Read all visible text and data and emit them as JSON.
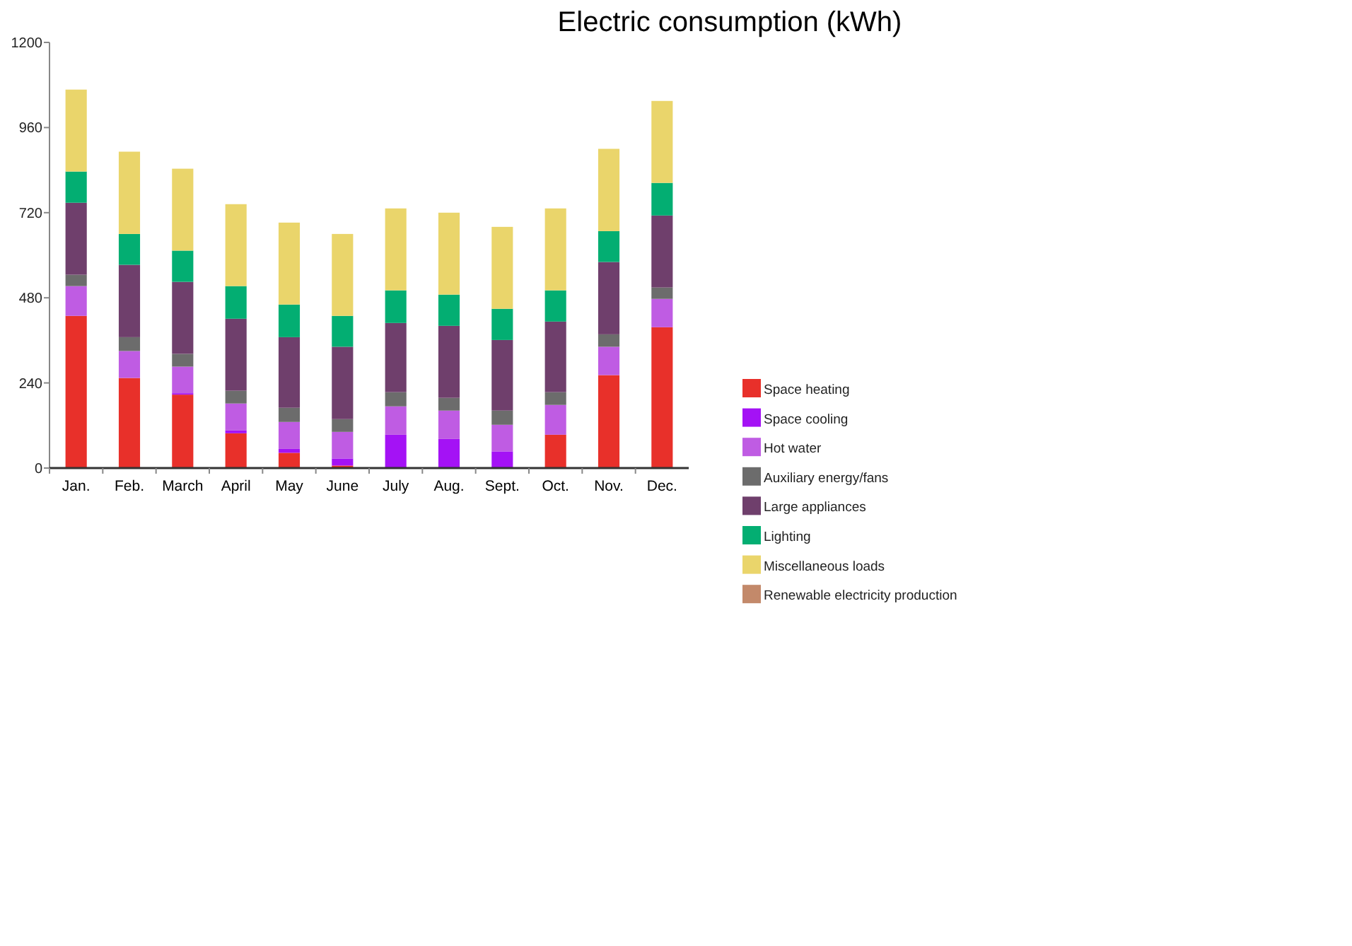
{
  "chart_data": {
    "type": "bar",
    "title": "Electric consumption (kWh)",
    "stacked": true,
    "legend": "right",
    "grid": false,
    "categories": [
      "Jan.",
      "Feb.",
      "March",
      "April",
      "May",
      "June",
      "July",
      "Aug.",
      "Sept.",
      "Oct.",
      "Nov.",
      "Dec."
    ],
    "ylim": [
      0,
      1200
    ],
    "yticks": [
      0,
      240,
      480,
      720,
      960,
      1200
    ],
    "series": [
      {
        "name": "Space heating",
        "color": "#e8302a",
        "values": [
          429,
          254,
          207,
          98,
          43,
          7,
          0,
          0,
          0,
          94,
          262,
          397
        ]
      },
      {
        "name": "Space cooling",
        "color": "#a412f5",
        "values": [
          0,
          0,
          4,
          8,
          11,
          20,
          94,
          82,
          47,
          0,
          0,
          0
        ]
      },
      {
        "name": "Hot water",
        "color": "#bf5ce3",
        "values": [
          84,
          76,
          75,
          76,
          76,
          75,
          80,
          80,
          75,
          84,
          80,
          80
        ]
      },
      {
        "name": "Auxiliary energy/fans",
        "color": "#6c6c6c",
        "values": [
          32,
          39,
          36,
          36,
          40,
          36,
          40,
          36,
          40,
          36,
          35,
          32
        ]
      },
      {
        "name": "Large appliances",
        "color": "#6f3f6c",
        "values": [
          203,
          204,
          203,
          203,
          199,
          204,
          195,
          203,
          199,
          199,
          204,
          203
        ]
      },
      {
        "name": "Lighting",
        "color": "#03ae72",
        "values": [
          88,
          87,
          88,
          92,
          92,
          87,
          92,
          88,
          88,
          88,
          87,
          92
        ]
      },
      {
        "name": "Miscellaneous loads",
        "color": "#ead56b",
        "values": [
          231,
          232,
          231,
          231,
          231,
          231,
          231,
          231,
          231,
          231,
          232,
          231
        ]
      },
      {
        "name": "Renewable electricity production",
        "color": "#c3896a",
        "values": [
          null,
          null,
          null,
          null,
          null,
          null,
          null,
          null,
          null,
          null,
          null,
          null
        ]
      }
    ]
  }
}
